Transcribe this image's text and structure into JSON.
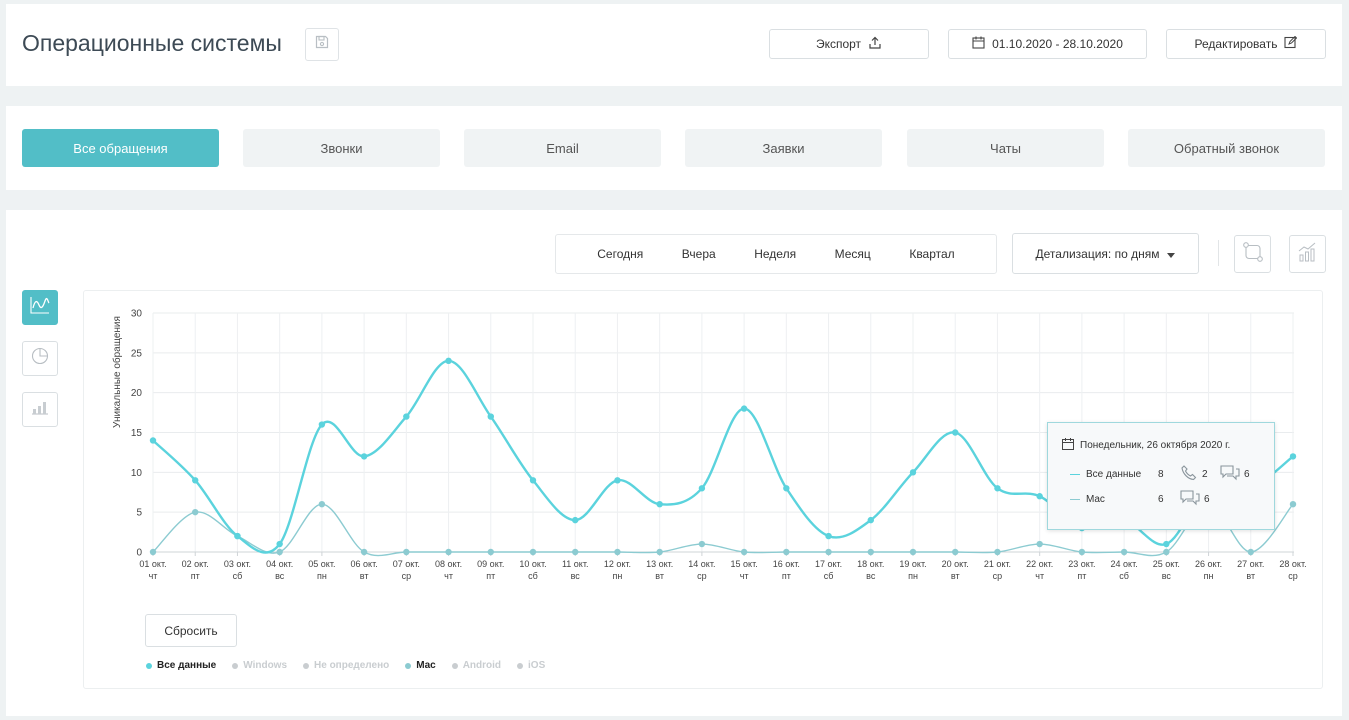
{
  "header": {
    "title": "Операционные системы",
    "export_label": "Экспорт",
    "date_range": "01.10.2020 - 28.10.2020",
    "edit_label": "Редактировать"
  },
  "tabs": [
    {
      "label": "Все обращения",
      "active": true
    },
    {
      "label": "Звонки",
      "active": false
    },
    {
      "label": "Email",
      "active": false
    },
    {
      "label": "Заявки",
      "active": false
    },
    {
      "label": "Чаты",
      "active": false
    },
    {
      "label": "Обратный звонок",
      "active": false
    }
  ],
  "periods": [
    "Сегодня",
    "Вчера",
    "Неделя",
    "Месяц",
    "Квартал"
  ],
  "detail_label": "Детализация: по дням",
  "reset_label": "Сбросить",
  "legend": [
    {
      "label": "Все данные",
      "active": true,
      "color": "#5bd3dd"
    },
    {
      "label": "Windows",
      "active": false,
      "color": "#c9cdd0"
    },
    {
      "label": "Не определено",
      "active": false,
      "color": "#c9cdd0"
    },
    {
      "label": "Mac",
      "active": true,
      "color": "#8ccbd1"
    },
    {
      "label": "Android",
      "active": false,
      "color": "#c9cdd0"
    },
    {
      "label": "iOS",
      "active": false,
      "color": "#c9cdd0"
    }
  ],
  "tooltip": {
    "date": "Понедельник, 26 октября 2020 г.",
    "rows": [
      {
        "label": "Все данные",
        "total": "8",
        "calls": "2",
        "chats": "6",
        "color": "#5bd3dd"
      },
      {
        "label": "Mac",
        "total": "6",
        "calls": "",
        "chats": "6",
        "color": "#8ccbd1"
      }
    ]
  },
  "colors": {
    "accent": "#52bec7",
    "series_all": "#5bd3dd",
    "series_mac": "#8ccbd1"
  },
  "chart_data": {
    "type": "line",
    "ylabel": "Уникальные обращения",
    "ylim": [
      0,
      30
    ],
    "yticks": [
      0,
      5,
      10,
      15,
      20,
      25,
      30
    ],
    "categories": [
      [
        "01 окт.",
        "чт"
      ],
      [
        "02 окт.",
        "пт"
      ],
      [
        "03 окт.",
        "сб"
      ],
      [
        "04 окт.",
        "вс"
      ],
      [
        "05 окт.",
        "пн"
      ],
      [
        "06 окт.",
        "вт"
      ],
      [
        "07 окт.",
        "ср"
      ],
      [
        "08 окт.",
        "чт"
      ],
      [
        "09 окт.",
        "пт"
      ],
      [
        "10 окт.",
        "сб"
      ],
      [
        "11 окт.",
        "вс"
      ],
      [
        "12 окт.",
        "пн"
      ],
      [
        "13 окт.",
        "вт"
      ],
      [
        "14 окт.",
        "ср"
      ],
      [
        "15 окт.",
        "чт"
      ],
      [
        "16 окт.",
        "пт"
      ],
      [
        "17 окт.",
        "сб"
      ],
      [
        "18 окт.",
        "вс"
      ],
      [
        "19 окт.",
        "пн"
      ],
      [
        "20 окт.",
        "вт"
      ],
      [
        "21 окт.",
        "ср"
      ],
      [
        "22 окт.",
        "чт"
      ],
      [
        "23 окт.",
        "пт"
      ],
      [
        "24 окт.",
        "сб"
      ],
      [
        "25 окт.",
        "вс"
      ],
      [
        "26 окт.",
        "пн"
      ],
      [
        "27 окт.",
        "вт"
      ],
      [
        "28 окт.",
        "ср"
      ]
    ],
    "series": [
      {
        "name": "Все данные",
        "values": [
          14,
          9,
          2,
          1,
          16,
          12,
          17,
          24,
          17,
          9,
          4,
          9,
          6,
          8,
          18,
          8,
          2,
          4,
          10,
          15,
          8,
          7,
          3,
          4,
          1,
          8,
          8,
          12
        ]
      },
      {
        "name": "Mac",
        "values": [
          0,
          5,
          2,
          0,
          6,
          0,
          0,
          0,
          0,
          0,
          0,
          0,
          0,
          1,
          0,
          0,
          0,
          0,
          0,
          0,
          0,
          1,
          0,
          0,
          0,
          6,
          0,
          6
        ]
      }
    ],
    "highlight_index": 25,
    "grid": true
  }
}
